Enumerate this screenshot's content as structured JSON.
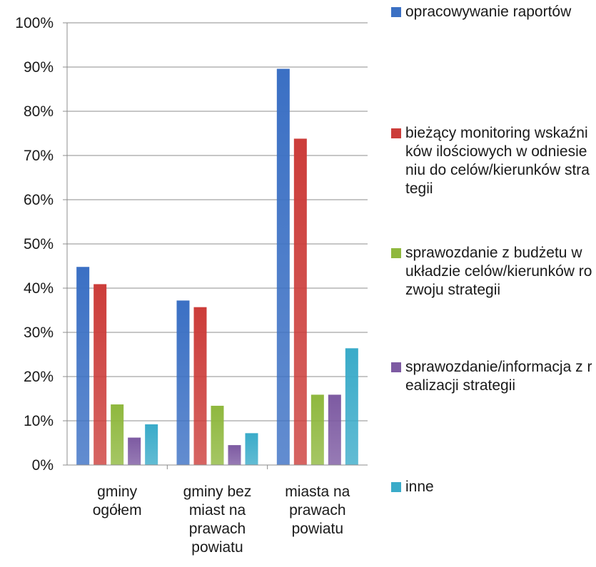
{
  "chart_data": {
    "type": "bar",
    "title": "",
    "xlabel": "",
    "ylabel": "",
    "ylim": [
      0,
      1
    ],
    "y_ticks": [
      "0%",
      "10%",
      "20%",
      "30%",
      "40%",
      "50%",
      "60%",
      "70%",
      "80%",
      "90%",
      "100%"
    ],
    "grid": true,
    "legend_position": "right",
    "categories": [
      "gminy ogółem",
      "gminy bez miast na prawach powiatu",
      "miasta na prawach powiatu"
    ],
    "category_lines": [
      [
        "gminy",
        "ogółem"
      ],
      [
        "gminy bez",
        "miast na",
        "prawach",
        "powiatu"
      ],
      [
        "miasta na",
        "prawach",
        "powiatu"
      ]
    ],
    "series": [
      {
        "name": "opracowywanie raportów",
        "color": "#3b70c4",
        "values": [
          0.448,
          0.372,
          0.896
        ]
      },
      {
        "name": "bieżący monitoring wskaźników ilościowych w odniesieniu do celów/kierunków strategii",
        "color": "#cc3d3a",
        "values": [
          0.409,
          0.357,
          0.738
        ]
      },
      {
        "name": "sprawozdanie z budżetu w układzie celów/kierunków rozwoju strategii",
        "color": "#8fb83e",
        "values": [
          0.137,
          0.134,
          0.159
        ]
      },
      {
        "name": "sprawozdanie/informacja z realizacji strategii",
        "color": "#7d5aa2",
        "values": [
          0.062,
          0.045,
          0.159
        ]
      },
      {
        "name": "inne",
        "color": "#3aabc9",
        "values": [
          0.092,
          0.072,
          0.264
        ]
      }
    ]
  }
}
